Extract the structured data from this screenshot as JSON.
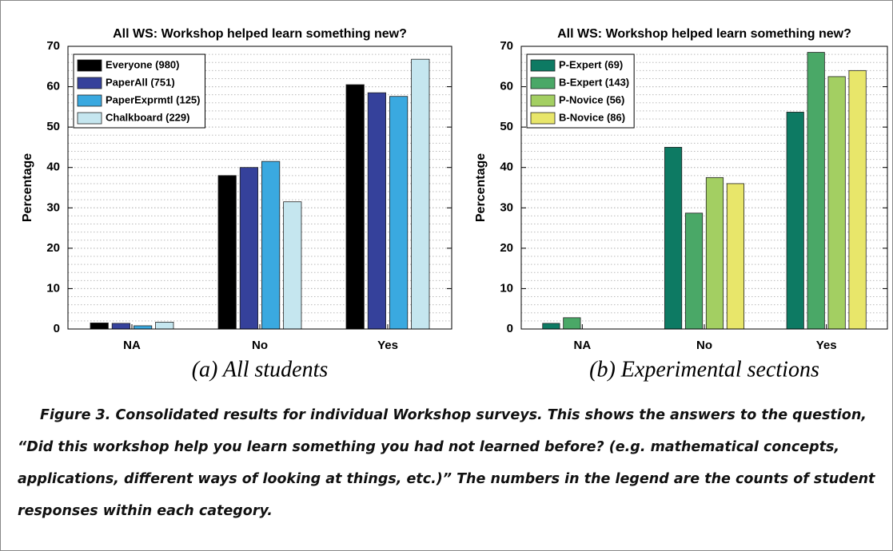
{
  "chart_data": [
    {
      "type": "bar",
      "title": "All WS: Workshop helped learn something new?",
      "y_label": "Percentage",
      "caption": "(a) All students",
      "categories": [
        "NA",
        "No",
        "Yes"
      ],
      "series": [
        {
          "name": "Everyone (980)",
          "color": "#000000",
          "values": [
            1.5,
            38,
            60.5
          ]
        },
        {
          "name": "PaperAll (751)",
          "color": "#35419b",
          "values": [
            1.4,
            40,
            58.5
          ]
        },
        {
          "name": "PaperExprmtl (125)",
          "color": "#3aa9e0",
          "values": [
            0.8,
            41.5,
            57.6
          ]
        },
        {
          "name": "Chalkboard (229)",
          "color": "#c5e6ef",
          "values": [
            1.7,
            31.5,
            66.8
          ]
        }
      ],
      "ylim": [
        0,
        70
      ],
      "yticks": [
        0,
        10,
        20,
        30,
        40,
        50,
        60,
        70
      ],
      "grid": true,
      "legend": "upper left"
    },
    {
      "type": "bar",
      "title": "All WS: Workshop helped learn something new?",
      "y_label": "Percentage",
      "caption": "(b) Experimental sections",
      "categories": [
        "NA",
        "No",
        "Yes"
      ],
      "series": [
        {
          "name": "P-Expert (69)",
          "color": "#0d7a63",
          "values": [
            1.4,
            45,
            53.7
          ]
        },
        {
          "name": "B-Expert (143)",
          "color": "#4aa867",
          "values": [
            2.8,
            28.7,
            68.5
          ]
        },
        {
          "name": "P-Novice (56)",
          "color": "#a3cf62",
          "values": [
            0,
            37.5,
            62.5
          ]
        },
        {
          "name": "B-Novice (86)",
          "color": "#e8e66a",
          "values": [
            0,
            36,
            64
          ]
        }
      ],
      "ylim": [
        0,
        70
      ],
      "yticks": [
        0,
        10,
        20,
        30,
        40,
        50,
        60,
        70
      ],
      "grid": true,
      "legend": "upper left"
    }
  ],
  "figure_caption": "Figure 3. Consolidated results for individual Workshop surveys. This shows the answers to the question, “Did this workshop help you learn something you had not learned before? (e.g. mathematical concepts, applications, different ways of looking at things, etc.)” The numbers in the legend are the counts of student responses within each category."
}
